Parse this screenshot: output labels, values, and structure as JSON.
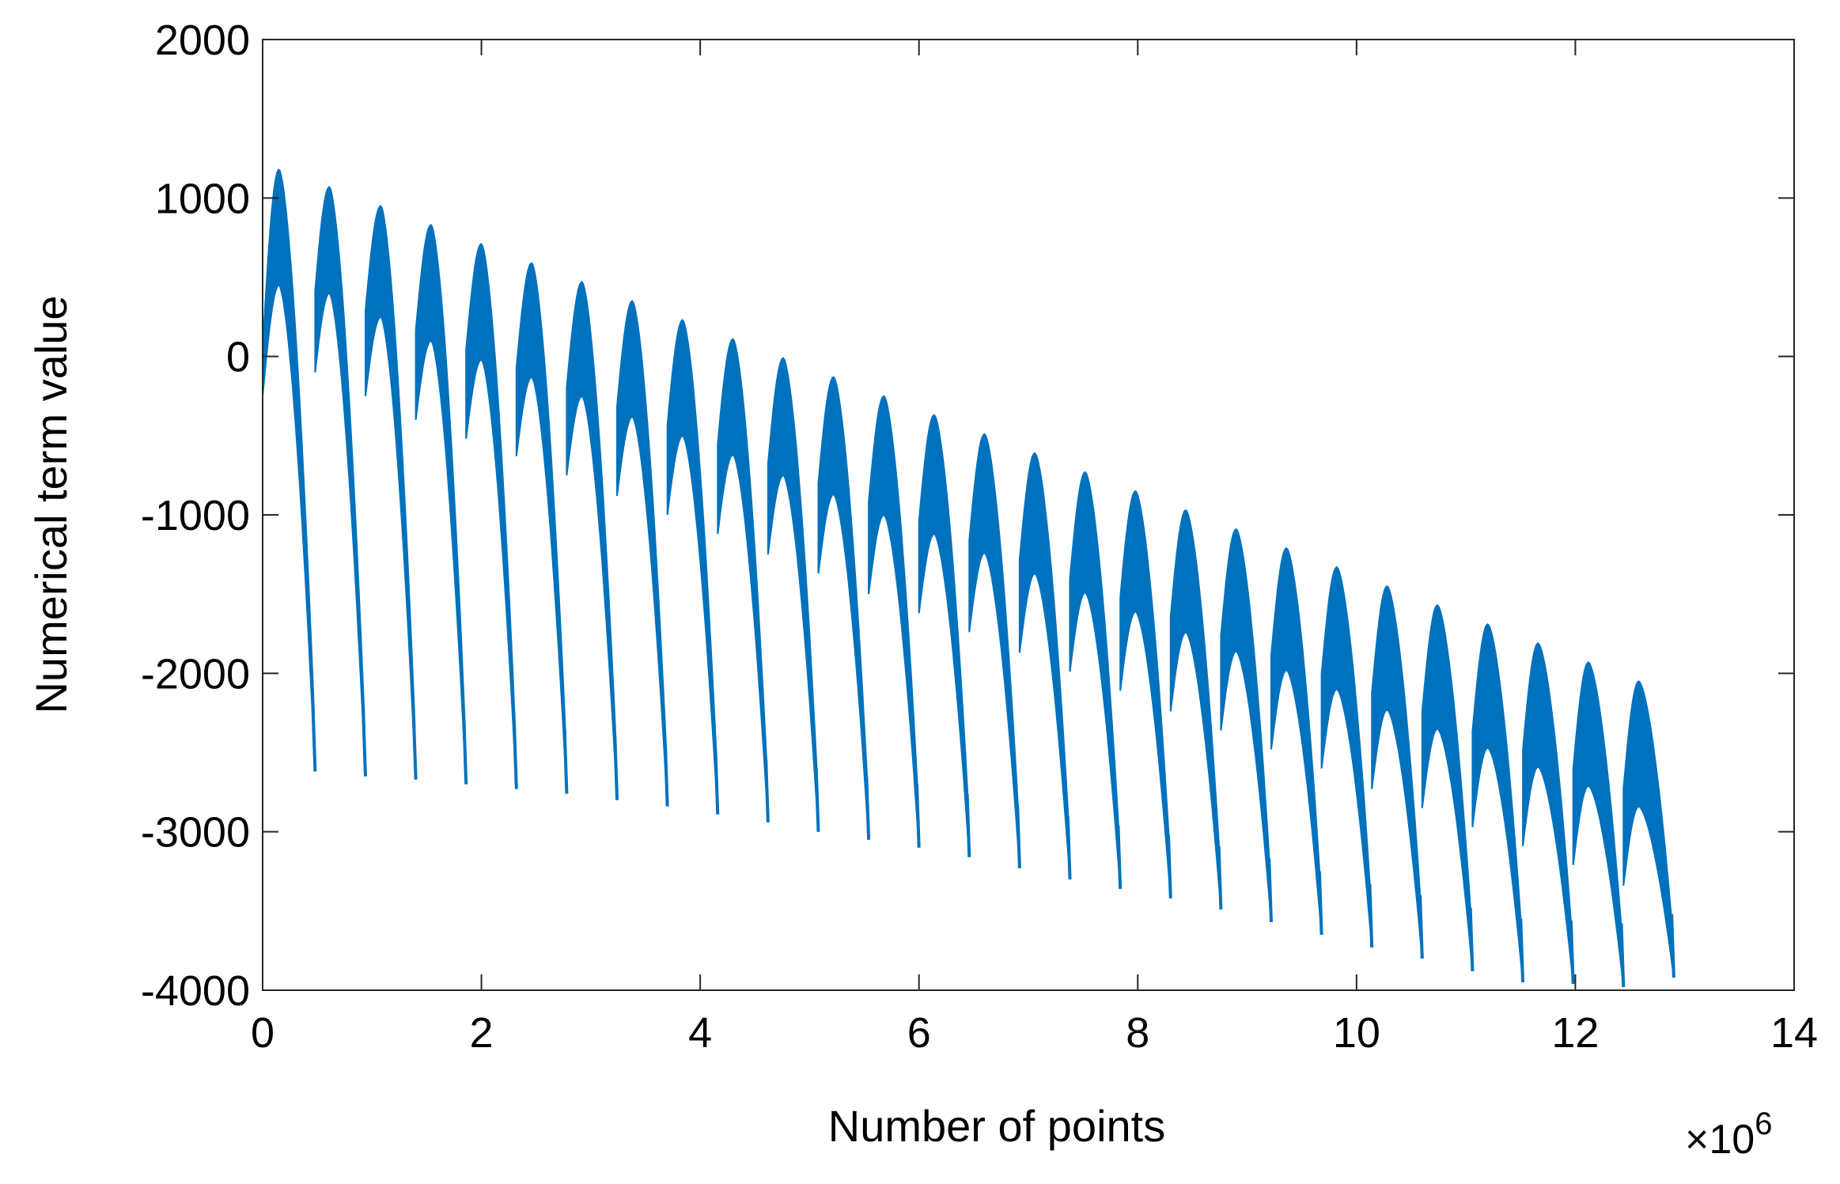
{
  "chart_data": {
    "type": "line",
    "title": "",
    "xlabel": "Number of points",
    "ylabel": "Numerical term value",
    "x_multiplier_label": "×10",
    "x_multiplier_exponent": "6",
    "xlim": [
      0,
      14
    ],
    "ylim": [
      -4000,
      2000
    ],
    "x_ticks": [
      0,
      2,
      4,
      6,
      8,
      10,
      12,
      14
    ],
    "y_ticks": [
      2000,
      1000,
      0,
      -1000,
      -2000,
      -3000,
      -4000
    ],
    "x_tick_labels": [
      "0",
      "2",
      "4",
      "6",
      "8",
      "10",
      "12",
      "14"
    ],
    "y_tick_labels": [
      "2000",
      "1000",
      "0",
      "-1000",
      "-2000",
      "-3000",
      "-4000"
    ],
    "grid": false,
    "legend": "none",
    "series_color": "#0072BD",
    "series": [
      {
        "x_unit": "x10^6 points",
        "cycles": [
          {
            "start": 0.0,
            "peak_x": 0.15,
            "peak_upper": 1180,
            "peak_lower": 450,
            "end": 0.48,
            "end_value": -2620
          },
          {
            "start": 0.48,
            "peak_x": 0.61,
            "peak_upper": 1070,
            "peak_lower": 400,
            "end": 0.94,
            "end_value": -2650
          },
          {
            "start": 0.94,
            "peak_x": 1.08,
            "peak_upper": 950,
            "peak_lower": 250,
            "end": 1.4,
            "end_value": -2670
          },
          {
            "start": 1.4,
            "peak_x": 1.54,
            "peak_upper": 830,
            "peak_lower": 100,
            "end": 1.86,
            "end_value": -2700
          },
          {
            "start": 1.86,
            "peak_x": 2.0,
            "peak_upper": 710,
            "peak_lower": -20,
            "end": 2.32,
            "end_value": -2730
          },
          {
            "start": 2.32,
            "peak_x": 2.46,
            "peak_upper": 590,
            "peak_lower": -130,
            "end": 2.78,
            "end_value": -2760
          },
          {
            "start": 2.78,
            "peak_x": 2.92,
            "peak_upper": 470,
            "peak_lower": -250,
            "end": 3.24,
            "end_value": -2800
          },
          {
            "start": 3.24,
            "peak_x": 3.38,
            "peak_upper": 350,
            "peak_lower": -380,
            "end": 3.7,
            "end_value": -2840
          },
          {
            "start": 3.7,
            "peak_x": 3.84,
            "peak_upper": 230,
            "peak_lower": -500,
            "end": 4.16,
            "end_value": -2890
          },
          {
            "start": 4.16,
            "peak_x": 4.3,
            "peak_upper": 110,
            "peak_lower": -620,
            "end": 4.62,
            "end_value": -2940
          },
          {
            "start": 4.62,
            "peak_x": 4.76,
            "peak_upper": -10,
            "peak_lower": -750,
            "end": 5.08,
            "end_value": -3000
          },
          {
            "start": 5.08,
            "peak_x": 5.22,
            "peak_upper": -130,
            "peak_lower": -870,
            "end": 5.54,
            "end_value": -3050
          },
          {
            "start": 5.54,
            "peak_x": 5.68,
            "peak_upper": -250,
            "peak_lower": -1000,
            "end": 6.0,
            "end_value": -3100
          },
          {
            "start": 6.0,
            "peak_x": 6.14,
            "peak_upper": -370,
            "peak_lower": -1120,
            "end": 6.46,
            "end_value": -3160
          },
          {
            "start": 6.46,
            "peak_x": 6.6,
            "peak_upper": -490,
            "peak_lower": -1240,
            "end": 6.92,
            "end_value": -3230
          },
          {
            "start": 6.92,
            "peak_x": 7.06,
            "peak_upper": -610,
            "peak_lower": -1370,
            "end": 7.38,
            "end_value": -3300
          },
          {
            "start": 7.38,
            "peak_x": 7.52,
            "peak_upper": -730,
            "peak_lower": -1490,
            "end": 7.84,
            "end_value": -3360
          },
          {
            "start": 7.84,
            "peak_x": 7.98,
            "peak_upper": -850,
            "peak_lower": -1610,
            "end": 8.3,
            "end_value": -3420
          },
          {
            "start": 8.3,
            "peak_x": 8.44,
            "peak_upper": -970,
            "peak_lower": -1740,
            "end": 8.76,
            "end_value": -3490
          },
          {
            "start": 8.76,
            "peak_x": 8.9,
            "peak_upper": -1090,
            "peak_lower": -1860,
            "end": 9.22,
            "end_value": -3570
          },
          {
            "start": 9.22,
            "peak_x": 9.36,
            "peak_upper": -1210,
            "peak_lower": -1980,
            "end": 9.68,
            "end_value": -3650
          },
          {
            "start": 9.68,
            "peak_x": 9.82,
            "peak_upper": -1330,
            "peak_lower": -2100,
            "end": 10.14,
            "end_value": -3730
          },
          {
            "start": 10.14,
            "peak_x": 10.28,
            "peak_upper": -1450,
            "peak_lower": -2230,
            "end": 10.6,
            "end_value": -3800
          },
          {
            "start": 10.6,
            "peak_x": 10.74,
            "peak_upper": -1570,
            "peak_lower": -2350,
            "end": 11.06,
            "end_value": -3880
          },
          {
            "start": 11.06,
            "peak_x": 11.2,
            "peak_upper": -1690,
            "peak_lower": -2470,
            "end": 11.52,
            "end_value": -3950
          },
          {
            "start": 11.52,
            "peak_x": 11.66,
            "peak_upper": -1810,
            "peak_lower": -2590,
            "end": 11.98,
            "end_value": -3960
          },
          {
            "start": 11.98,
            "peak_x": 12.12,
            "peak_upper": -1930,
            "peak_lower": -2710,
            "end": 12.44,
            "end_value": -3980
          },
          {
            "start": 12.44,
            "peak_x": 12.58,
            "peak_upper": -2050,
            "peak_lower": -2840,
            "end": 12.9,
            "end_value": -3920
          }
        ]
      }
    ]
  }
}
